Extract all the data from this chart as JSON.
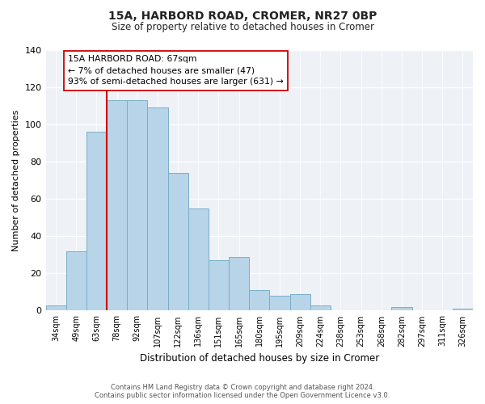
{
  "title": "15A, HARBORD ROAD, CROMER, NR27 0BP",
  "subtitle": "Size of property relative to detached houses in Cromer",
  "xlabel": "Distribution of detached houses by size in Cromer",
  "ylabel": "Number of detached properties",
  "bar_color": "#b8d4e8",
  "bar_edge_color": "#7aaec8",
  "categories": [
    "34sqm",
    "49sqm",
    "63sqm",
    "78sqm",
    "92sqm",
    "107sqm",
    "122sqm",
    "136sqm",
    "151sqm",
    "165sqm",
    "180sqm",
    "195sqm",
    "209sqm",
    "224sqm",
    "238sqm",
    "253sqm",
    "268sqm",
    "282sqm",
    "297sqm",
    "311sqm",
    "326sqm"
  ],
  "values": [
    3,
    32,
    96,
    113,
    113,
    109,
    74,
    55,
    27,
    29,
    11,
    8,
    9,
    3,
    0,
    0,
    0,
    2,
    0,
    0,
    1
  ],
  "vline_x": 3,
  "vline_color": "#cc0000",
  "annotation_text": "15A HARBORD ROAD: 67sqm\n← 7% of detached houses are smaller (47)\n93% of semi-detached houses are larger (631) →",
  "annotation_box_color": "#ffffff",
  "annotation_box_edge": "#cc0000",
  "ylim": [
    0,
    140
  ],
  "yticks": [
    0,
    20,
    40,
    60,
    80,
    100,
    120,
    140
  ],
  "footer_line1": "Contains HM Land Registry data © Crown copyright and database right 2024.",
  "footer_line2": "Contains public sector information licensed under the Open Government Licence v3.0.",
  "background_color": "#eef2f7"
}
